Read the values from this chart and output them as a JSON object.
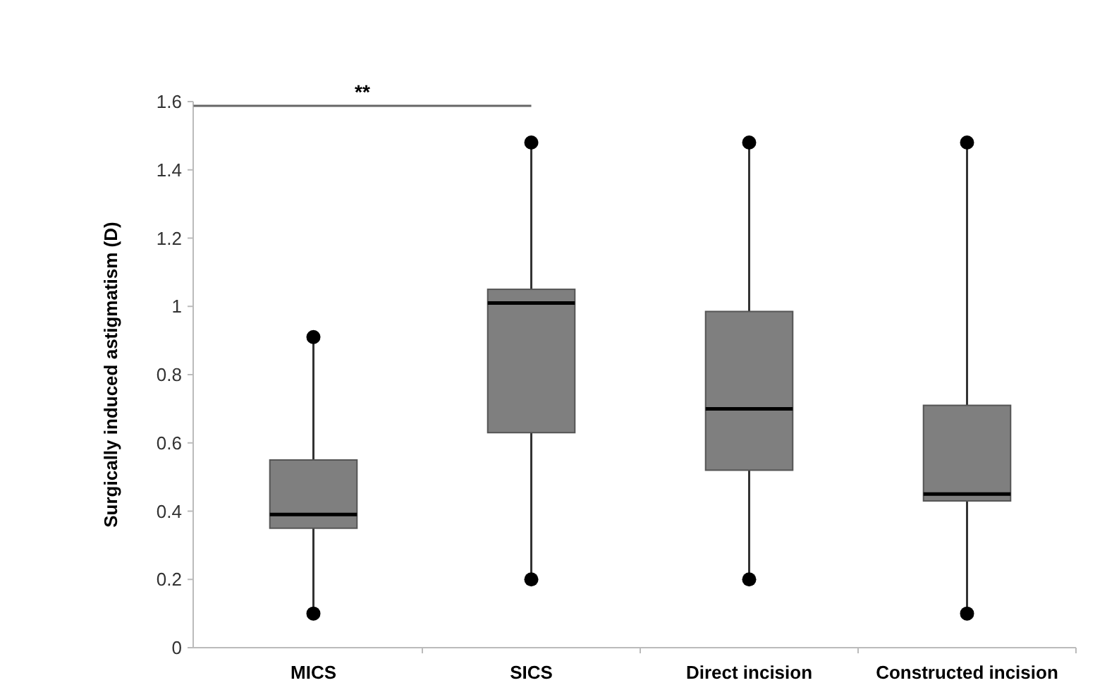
{
  "chart_data": {
    "type": "box",
    "ylabel": "Surgically induced astigmatism (D)",
    "categories": [
      "MICS",
      "SICS",
      "Direct incision",
      "Constructed incision"
    ],
    "color": "#7f7f7f",
    "boxes": [
      {
        "low": 0.1,
        "q1": 0.35,
        "median": 0.39,
        "q3": 0.55,
        "high": 0.91
      },
      {
        "low": 0.2,
        "q1": 0.63,
        "median": 1.01,
        "q3": 1.05,
        "high": 1.48
      },
      {
        "low": 0.2,
        "q1": 0.52,
        "median": 0.7,
        "q3": 0.985,
        "high": 1.48
      },
      {
        "low": 0.1,
        "q1": 0.43,
        "median": 0.45,
        "q3": 0.71,
        "high": 1.48
      }
    ],
    "ylim": [
      0,
      1.6
    ],
    "yticks": [
      0,
      0.2,
      0.4,
      0.6,
      0.8,
      1,
      1.2,
      1.4,
      1.6
    ],
    "grid": false,
    "annotations": [
      "**"
    ]
  }
}
